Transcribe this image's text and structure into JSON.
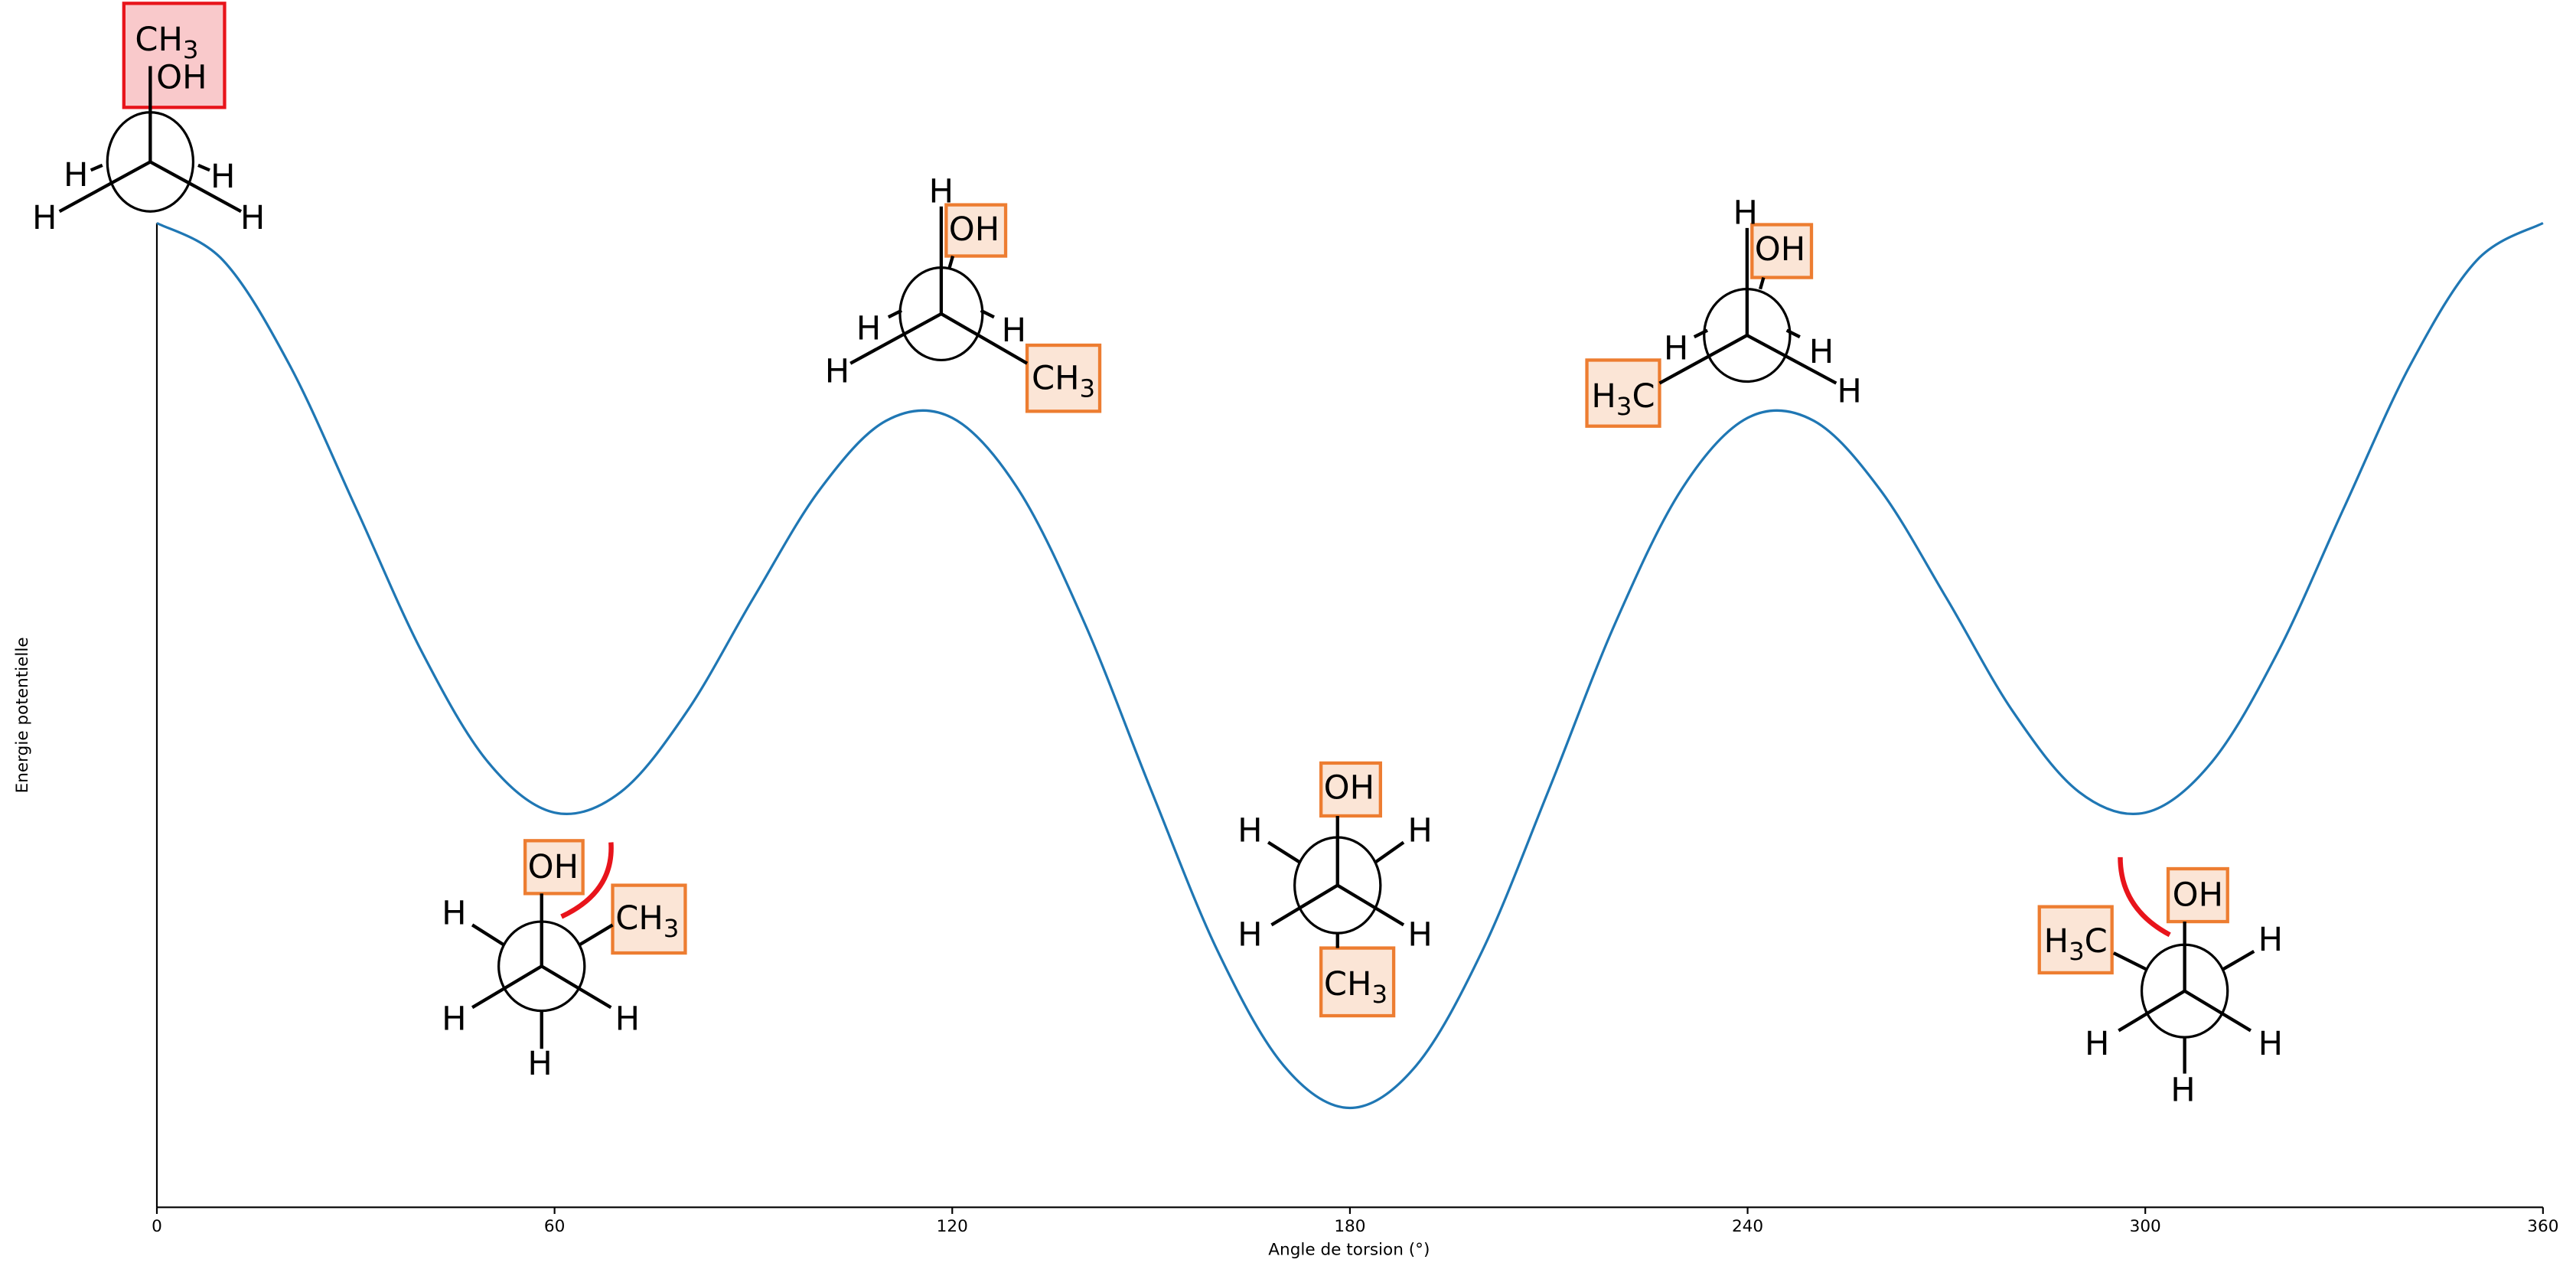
{
  "chart_data": {
    "type": "line",
    "xlabel": "Angle de torsion (°)",
    "ylabel": "Energie potentielle",
    "x": [
      0,
      10,
      20,
      30,
      40,
      50,
      60,
      70,
      80,
      90,
      100,
      110,
      120,
      130,
      140,
      150,
      160,
      170,
      180,
      190,
      200,
      210,
      220,
      230,
      240,
      250,
      260,
      270,
      280,
      290,
      300,
      310,
      320,
      330,
      340,
      350,
      360
    ],
    "series": [
      {
        "color": "#1f77b4",
        "values": [
          100,
          96.2,
          85.6,
          71.1,
          56.4,
          45.2,
          40.1,
          42.2,
          50.4,
          61.9,
          72.9,
          79.9,
          80.2,
          72.9,
          59.3,
          42.4,
          26.1,
          14.4,
          10.1,
          14.4,
          26.1,
          42.4,
          59.3,
          72.9,
          80.2,
          79.9,
          72.9,
          61.9,
          50.4,
          42.2,
          40.1,
          45.2,
          56.4,
          71.1,
          85.6,
          96.2,
          100
        ]
      }
    ],
    "xlim": [
      0,
      360
    ],
    "ylim": [
      0,
      100
    ],
    "xticks": [
      0,
      60,
      120,
      180,
      240,
      300,
      360
    ],
    "conformers": [
      {
        "labels": [
          "CH3",
          "OH",
          "H",
          "H",
          "H",
          "H"
        ]
      },
      {
        "labels": [
          "OH",
          "CH3",
          "H",
          "H",
          "H",
          "H"
        ]
      },
      {
        "labels": [
          "H",
          "OH",
          "H",
          "H",
          "H",
          "CH3"
        ]
      },
      {
        "labels": [
          "OH",
          "CH3",
          "H",
          "H",
          "H",
          "H"
        ]
      },
      {
        "labels": [
          "H",
          "OH",
          "H",
          "H",
          "H3C",
          "H"
        ]
      },
      {
        "labels": [
          "OH",
          "H3C",
          "H",
          "H",
          "H",
          "H"
        ]
      }
    ]
  }
}
